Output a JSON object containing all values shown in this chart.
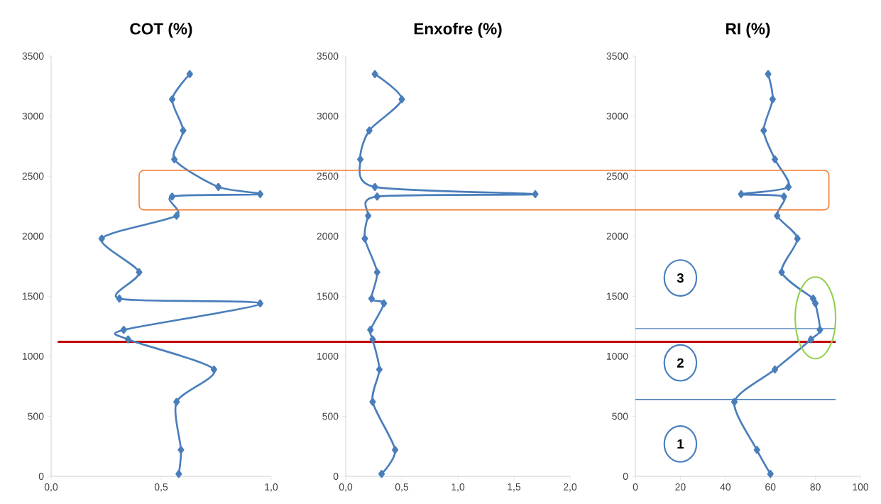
{
  "chart_data": [
    {
      "type": "line",
      "title": "COT (%)",
      "color": "#4a7ebb",
      "marker": "diamond",
      "line_style": "solid",
      "x": [
        0.58,
        0.59,
        0.57,
        0.74,
        0.35,
        0.33,
        0.95,
        0.31,
        0.4,
        0.23,
        0.57,
        0.55,
        0.95,
        0.76,
        0.56,
        0.6,
        0.55,
        0.63
      ],
      "values": [
        20,
        220,
        620,
        890,
        1140,
        1220,
        1440,
        1480,
        1700,
        1980,
        2170,
        2330,
        2350,
        2410,
        2640,
        2880,
        3140,
        3350
      ],
      "xlim": [
        0,
        1
      ],
      "xticks": [
        {
          "value": 0,
          "label": "0,0"
        },
        {
          "value": 0.5,
          "label": "0,5"
        },
        {
          "value": 1,
          "label": "1,0"
        }
      ],
      "ylim": [
        0,
        3500
      ],
      "yticks": [
        0,
        500,
        1000,
        1500,
        2000,
        2500,
        3000,
        3500
      ],
      "ref_lines": [
        {
          "axis": "y",
          "value": 1120,
          "color": "#c00000"
        }
      ]
    },
    {
      "type": "line",
      "title": "Enxofre (%)",
      "color": "#4a7ebb",
      "marker": "diamond",
      "line_style": "solid",
      "x": [
        0.32,
        0.44,
        0.24,
        0.3,
        0.24,
        0.22,
        0.34,
        0.23,
        0.28,
        0.17,
        0.2,
        0.28,
        1.69,
        0.26,
        0.13,
        0.21,
        0.5,
        0.26
      ],
      "values": [
        20,
        220,
        620,
        890,
        1140,
        1220,
        1440,
        1480,
        1700,
        1980,
        2170,
        2330,
        2350,
        2410,
        2640,
        2880,
        3140,
        3350
      ],
      "xlim": [
        0,
        2
      ],
      "xticks": [
        {
          "value": 0,
          "label": "0,0"
        },
        {
          "value": 0.5,
          "label": "0,5"
        },
        {
          "value": 1,
          "label": "1,0"
        },
        {
          "value": 1.5,
          "label": "1,5"
        },
        {
          "value": 2,
          "label": "2,0"
        }
      ],
      "ylim": [
        0,
        3500
      ],
      "yticks": [
        0,
        500,
        1000,
        1500,
        2000,
        2500,
        3000,
        3500
      ],
      "ref_lines": [
        {
          "axis": "y",
          "value": 1120,
          "color": "#c00000"
        }
      ]
    },
    {
      "type": "line",
      "title": "RI (%)",
      "color": "#4a7ebb",
      "marker": "diamond",
      "line_style": "solid",
      "x": [
        60,
        54,
        44,
        62,
        78,
        82,
        80,
        79,
        65,
        72,
        63,
        66,
        47,
        68,
        62,
        57,
        61,
        59
      ],
      "values": [
        20,
        220,
        620,
        890,
        1140,
        1220,
        1440,
        1480,
        1700,
        1980,
        2170,
        2330,
        2350,
        2410,
        2640,
        2880,
        3140,
        3350
      ],
      "xlim": [
        0,
        100
      ],
      "xticks": [
        0,
        20,
        40,
        60,
        80,
        100
      ],
      "ylim": [
        0,
        3500
      ],
      "yticks": [
        0,
        500,
        1000,
        1500,
        2000,
        2500,
        3000,
        3500
      ],
      "ref_lines": [
        {
          "axis": "y",
          "value": 1120,
          "color": "#c00000"
        },
        {
          "axis": "y",
          "value": 640,
          "color": "#4a7ebb"
        },
        {
          "axis": "y",
          "value": 1230,
          "color": "#4a7ebb"
        }
      ],
      "annotations": [
        "3",
        "2",
        "1"
      ]
    }
  ]
}
